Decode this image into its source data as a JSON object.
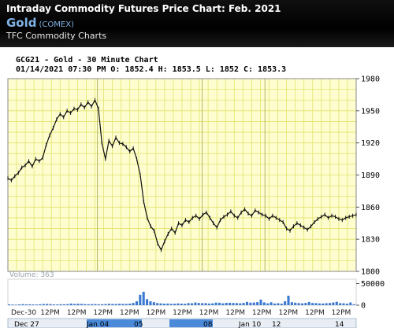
{
  "header": {
    "title": "Intraday Commodity Futures Price Chart: Feb. 2021",
    "name": "Gold",
    "exchange": "(COMEX)",
    "subtitle": "TFC Commodity Charts"
  },
  "chart_data": {
    "type": "line",
    "title": "GCG21 - Gold - 30 Minute Chart",
    "ohlc_line": "01/14/2021 07:30 PM O: 1852.4 H: 1853.5 L: 1852 C: 1853.3",
    "ylim": [
      1800,
      1980
    ],
    "y_ticks": [
      1980,
      1950,
      1920,
      1890,
      1860,
      1830,
      1800
    ],
    "x_tick_labels": [
      "Dec-30",
      "12PM",
      "12PM",
      "12PM",
      "12PM",
      "12PM",
      "12PM",
      "12PM",
      "12PM",
      "12PM",
      "12PM",
      "12PM",
      "12PM"
    ],
    "month_tabs": [
      "Dec 27",
      "Jan 04",
      "05",
      "08",
      "Jan 10",
      "12",
      "14"
    ],
    "grid": true,
    "price_series": {
      "name": "GCG21",
      "x": [
        0,
        3,
        6,
        9,
        12,
        15,
        18,
        21,
        24,
        27,
        30,
        33,
        36,
        39,
        42,
        45,
        48,
        51,
        54,
        57,
        60,
        63,
        66,
        69,
        72,
        75,
        78,
        81,
        84,
        87,
        90,
        93,
        96,
        99,
        102,
        105,
        108,
        111,
        114,
        117,
        120,
        123,
        126,
        129,
        132,
        135,
        138,
        141,
        144,
        147,
        150,
        153,
        156,
        159,
        162,
        165,
        168,
        171,
        174,
        177,
        180,
        183,
        186,
        189,
        192,
        195,
        198,
        201,
        204,
        207,
        210,
        213,
        216,
        219,
        222,
        225,
        228,
        231,
        234,
        237,
        240,
        243,
        246,
        249,
        252,
        255,
        258,
        261,
        264,
        267,
        270,
        273,
        276,
        279,
        282,
        285,
        288,
        291,
        294,
        297,
        300
      ],
      "values": [
        1887,
        1885,
        1889,
        1892,
        1897,
        1899,
        1903,
        1898,
        1905,
        1903,
        1906,
        1918,
        1927,
        1934,
        1942,
        1947,
        1944,
        1950,
        1948,
        1952,
        1951,
        1956,
        1953,
        1958,
        1954,
        1960,
        1952,
        1920,
        1905,
        1922,
        1917,
        1925,
        1920,
        1919,
        1916,
        1912,
        1915,
        1905,
        1890,
        1865,
        1850,
        1842,
        1838,
        1826,
        1820,
        1828,
        1835,
        1840,
        1836,
        1845,
        1843,
        1848,
        1846,
        1850,
        1852,
        1849,
        1853,
        1855,
        1850,
        1845,
        1841,
        1848,
        1851,
        1853,
        1856,
        1852,
        1850,
        1855,
        1858,
        1854,
        1852,
        1857,
        1855,
        1853,
        1852,
        1849,
        1852,
        1850,
        1848,
        1846,
        1840,
        1838,
        1842,
        1845,
        1843,
        1841,
        1839,
        1842,
        1846,
        1849,
        1851,
        1853,
        1850,
        1852,
        1851,
        1849,
        1848,
        1850,
        1851,
        1852,
        1853
      ]
    },
    "volume": {
      "label": "Volume: 363",
      "y_ticks": [
        50000,
        0
      ],
      "ylim": [
        0,
        60000
      ],
      "values": [
        2000,
        1500,
        1200,
        1800,
        2500,
        1900,
        2100,
        1700,
        1600,
        2200,
        2800,
        3000,
        2600,
        1900,
        1800,
        2300,
        2100,
        2600,
        3800,
        2900,
        3500,
        3100,
        2500,
        2200,
        2400,
        2600,
        2100,
        2300,
        2700,
        3300,
        2900,
        2800,
        3400,
        3100,
        3000,
        3600,
        5200,
        9000,
        24000,
        31000,
        14000,
        9000,
        7000,
        5000,
        4200,
        3600,
        3800,
        3200,
        3500,
        4100,
        3600,
        3300,
        4800,
        4500,
        6200,
        5200,
        4700,
        4800,
        3900,
        4200,
        6000,
        5600,
        4300,
        5400,
        5600,
        5100,
        4900,
        4400,
        5300,
        7600,
        5800,
        6200,
        7100,
        13000,
        6500,
        4300,
        6800,
        3900,
        4600,
        3500,
        9000,
        22000,
        6900,
        5800,
        4900,
        4300,
        5200,
        7400,
        5100,
        4800,
        4200,
        3900,
        4600,
        5000,
        6300,
        7900,
        4700,
        4400,
        3600,
        6300,
        2200
      ]
    },
    "colors": {
      "grid": "#e3e36f",
      "plot_bg": "#fdfdcf",
      "line": "#101010",
      "volume": "#3a79d1"
    }
  }
}
